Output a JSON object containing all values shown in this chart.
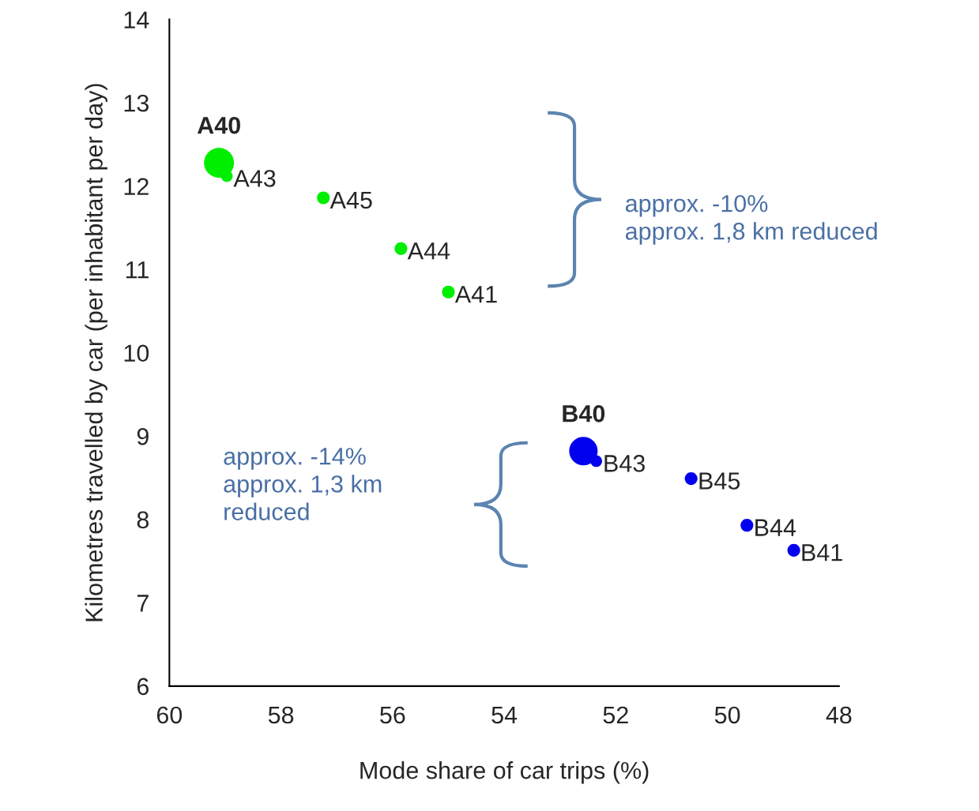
{
  "chart_data": {
    "type": "bubble",
    "xlabel": "Mode share of car trips (%)",
    "ylabel": "Kilometres travelled by car (per inhabitant per day)",
    "xlim": [
      60,
      48
    ],
    "xticks": [
      60,
      58,
      56,
      54,
      52,
      50,
      48
    ],
    "ylim": [
      6,
      14
    ],
    "yticks": [
      6,
      7,
      8,
      9,
      10,
      11,
      12,
      13,
      14
    ],
    "grid": false,
    "legend": false,
    "series": [
      {
        "color": "#00ee00",
        "x": [
          59.11,
          58.97,
          57.24,
          55.85,
          55.0
        ],
        "values": [
          12.28,
          12.12,
          11.86,
          11.25,
          10.73
        ],
        "sizes": [
          1,
          0.15,
          0.18,
          0.18,
          0.18
        ],
        "value_labels": [
          "A40",
          "A43",
          "A45",
          "A44",
          "A41"
        ]
      },
      {
        "color": "#0000ee",
        "x": [
          52.58,
          52.35,
          50.65,
          49.65,
          48.81
        ],
        "values": [
          8.82,
          8.7,
          8.49,
          7.93,
          7.63
        ],
        "sizes": [
          0.9,
          0.15,
          0.18,
          0.18,
          0.18
        ],
        "value_labels": [
          "B40",
          "B43",
          "B45",
          "B44",
          "B41"
        ]
      }
    ],
    "annotations": [
      "approx. -10%\napprox. 1,8 km reduced",
      "approx. -14%\napprox. 1,3 km\nreduced"
    ]
  }
}
